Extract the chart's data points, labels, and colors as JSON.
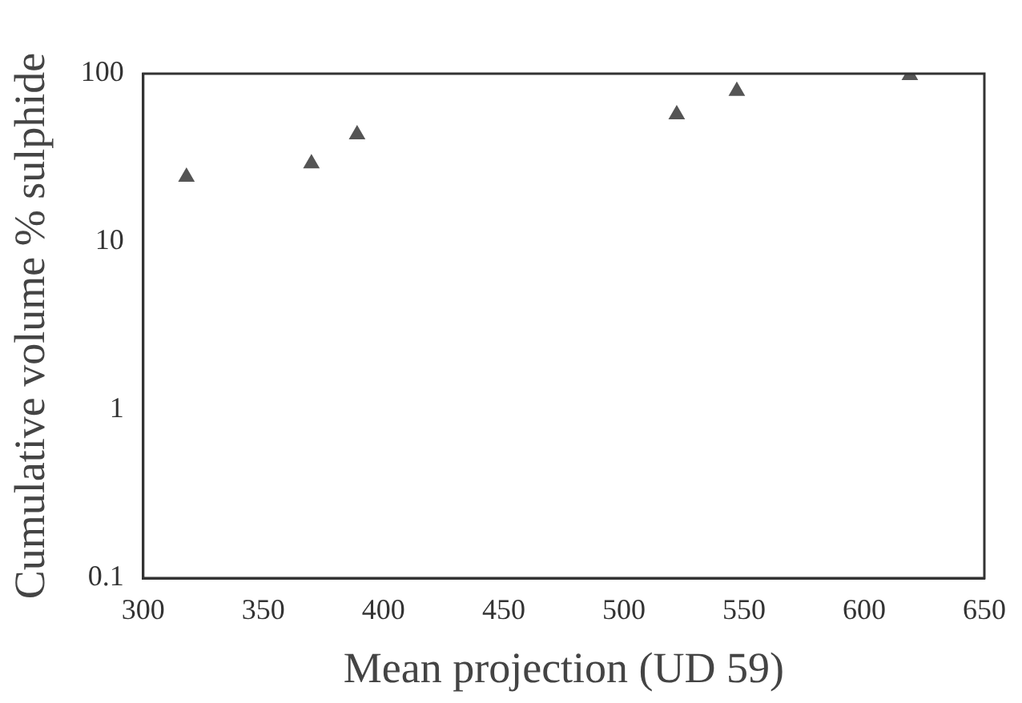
{
  "chart_data": {
    "type": "scatter",
    "xlabel": "Mean projection (UD 59)",
    "ylabel": "Cumulative volume % sulphide",
    "x": [
      318,
      370,
      389,
      522,
      547,
      619
    ],
    "values": [
      24.3,
      29.2,
      43.5,
      57.2,
      78.8,
      97.8
    ],
    "color": "#555555",
    "marker": "triangle",
    "log": "y",
    "grid": false,
    "legend": false,
    "xlim": [
      300,
      650
    ],
    "xticks": [
      300,
      350,
      400,
      450,
      500,
      550,
      600,
      650
    ],
    "ylim": [
      0.1,
      100
    ],
    "yticks": [
      0.1,
      1,
      10,
      100
    ]
  }
}
